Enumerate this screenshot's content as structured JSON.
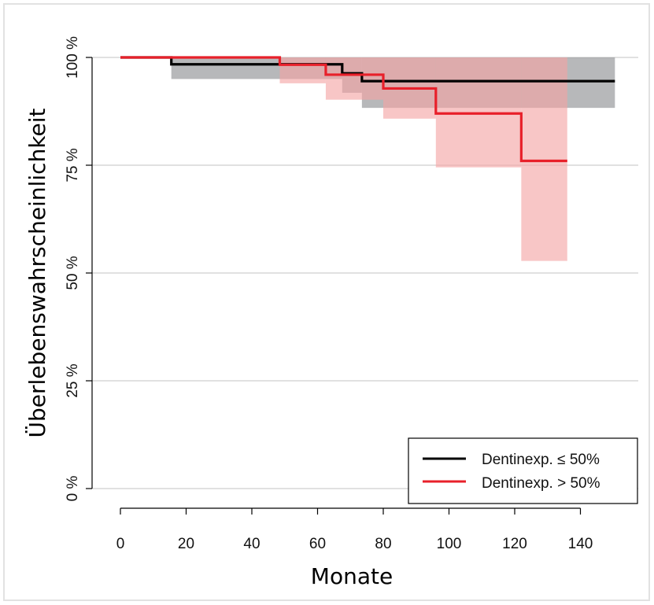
{
  "chart_data": {
    "type": "line",
    "subtype": "kaplan-meier step survival curves with confidence bands",
    "xlabel": "Monate",
    "ylabel": "Überlebenswahrscheinlichkeit",
    "xlim": [
      0,
      150
    ],
    "ylim": [
      0,
      100
    ],
    "x_ticks": [
      0,
      20,
      40,
      60,
      80,
      100,
      120,
      140
    ],
    "x_tick_labels": [
      "0",
      "20",
      "40",
      "60",
      "80",
      "100",
      "120",
      "140"
    ],
    "y_ticks": [
      0,
      25,
      50,
      75,
      100
    ],
    "y_tick_labels": [
      "0 %",
      "25 %",
      "50 %",
      "75 %",
      "100 %"
    ],
    "grid": "horizontal",
    "legend_position": "bottom-right",
    "series": [
      {
        "name": "Dentinexp. ≤ 50%",
        "color": "#000000",
        "band_color": "#8a8d8f",
        "x": [
          0,
          15.5,
          67.5,
          73.5,
          150.5
        ],
        "y": [
          100,
          98.4,
          96.3,
          94.5,
          94.5
        ],
        "ci_lower": [
          100,
          95.0,
          91.8,
          88.3,
          88.3
        ],
        "ci_upper": [
          100,
          100,
          100,
          100,
          100
        ]
      },
      {
        "name": "Dentinexp. > 50%",
        "color": "#e8202a",
        "band_color": "#f4a3a3",
        "x": [
          0,
          48.5,
          62.5,
          80.0,
          96.0,
          122.0,
          136.0
        ],
        "y": [
          100,
          98.3,
          96.0,
          92.8,
          87.0,
          76.0,
          76.0
        ],
        "ci_lower": [
          100,
          94.0,
          90.2,
          85.8,
          74.5,
          52.8,
          52.8
        ],
        "ci_upper": [
          100,
          100,
          100,
          100,
          100,
          100,
          100
        ]
      }
    ]
  }
}
